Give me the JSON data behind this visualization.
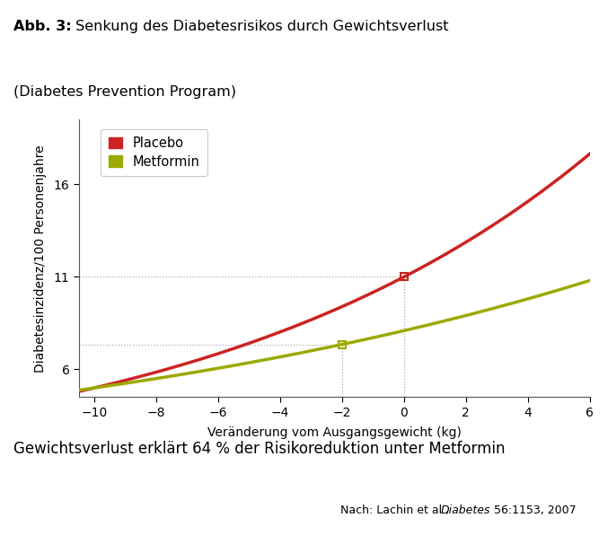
{
  "title_bold": "Abb. 3:",
  "title_rest": " Senkung des Diabetesrisikos durch Gewichtsverlust\n(Diabetes Prevention Program)",
  "xlabel": "Veränderung vom Ausgangsgewicht (kg)",
  "ylabel": "Diabetesinzidenz/100 Personenjahre",
  "xlim": [
    -10.5,
    6.0
  ],
  "ylim": [
    4.5,
    19.5
  ],
  "xticks": [
    -10,
    -8,
    -6,
    -4,
    -2,
    0,
    2,
    4,
    6
  ],
  "yticks": [
    6,
    11,
    16
  ],
  "header_color": "#c8cd3b",
  "bg_color": "#ffffff",
  "placebo_color": "#cc2222",
  "metformin_color": "#9aaa00",
  "legend_placebo": "Placebo",
  "legend_metformin": "Metformin",
  "footer_text": "Gewichtsverlust erklärt 64 % der Risikoreduktion unter Metformin",
  "citation_normal1": "Nach: Lachin et al., ",
  "citation_italic": "Diabetes",
  "citation_normal2": " 56:1153, 2007",
  "placebo_A": 11.0,
  "placebo_k": 0.215,
  "metformin_A": 5.05,
  "metformin_k": 0.105,
  "ref_placebo_x": 0.0,
  "ref_placebo_y": 11.0,
  "ref_metformin_x": -2.0,
  "ref_metformin_y": 7.35,
  "dotted_line_color": "#aaaaaa",
  "dotted_lw": 0.9
}
